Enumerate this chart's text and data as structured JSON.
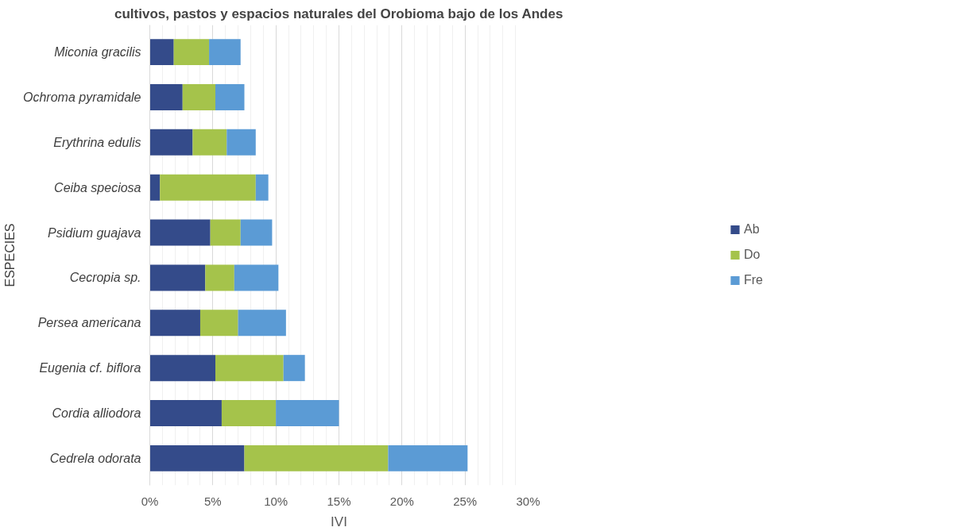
{
  "chart_data": {
    "type": "bar",
    "orientation": "horizontal",
    "stacked": true,
    "title": "cultivos, pastos y espacios naturales del Orobioma bajo de los Andes",
    "xlabel": "IVI",
    "ylabel": "ESPECIES",
    "categories": [
      "Miconia gracilis",
      "Ochroma pyramidale",
      "Erythrina edulis",
      "Ceiba speciosa",
      "Psidium guajava",
      "Cecropia sp.",
      "Persea americana",
      "Eugenia cf. biflora",
      "Cordia alliodora",
      "Cedrela odorata"
    ],
    "series": [
      {
        "name": "Ab",
        "color": "#344b8a",
        "values": [
          1.9,
          2.6,
          3.4,
          0.8,
          4.8,
          4.4,
          4.0,
          5.2,
          5.7,
          7.5
        ]
      },
      {
        "name": "Do",
        "color": "#a5c34b",
        "values": [
          2.8,
          2.6,
          2.7,
          7.6,
          2.4,
          2.3,
          3.0,
          5.4,
          4.3,
          11.4
        ]
      },
      {
        "name": "Fre",
        "color": "#5b9bd5",
        "values": [
          2.5,
          2.3,
          2.3,
          1.0,
          2.5,
          3.5,
          3.8,
          1.7,
          5.0,
          6.3
        ]
      }
    ],
    "xlim": [
      0,
      30
    ],
    "xticks": [
      {
        "value": 0,
        "label": "0%"
      },
      {
        "value": 5,
        "label": "5%"
      },
      {
        "value": 10,
        "label": "10%"
      },
      {
        "value": 15,
        "label": "15%"
      },
      {
        "value": 20,
        "label": "20%"
      },
      {
        "value": 25,
        "label": "25%"
      },
      {
        "value": 30,
        "label": "30%"
      }
    ],
    "grid": "x",
    "legend": "right"
  }
}
